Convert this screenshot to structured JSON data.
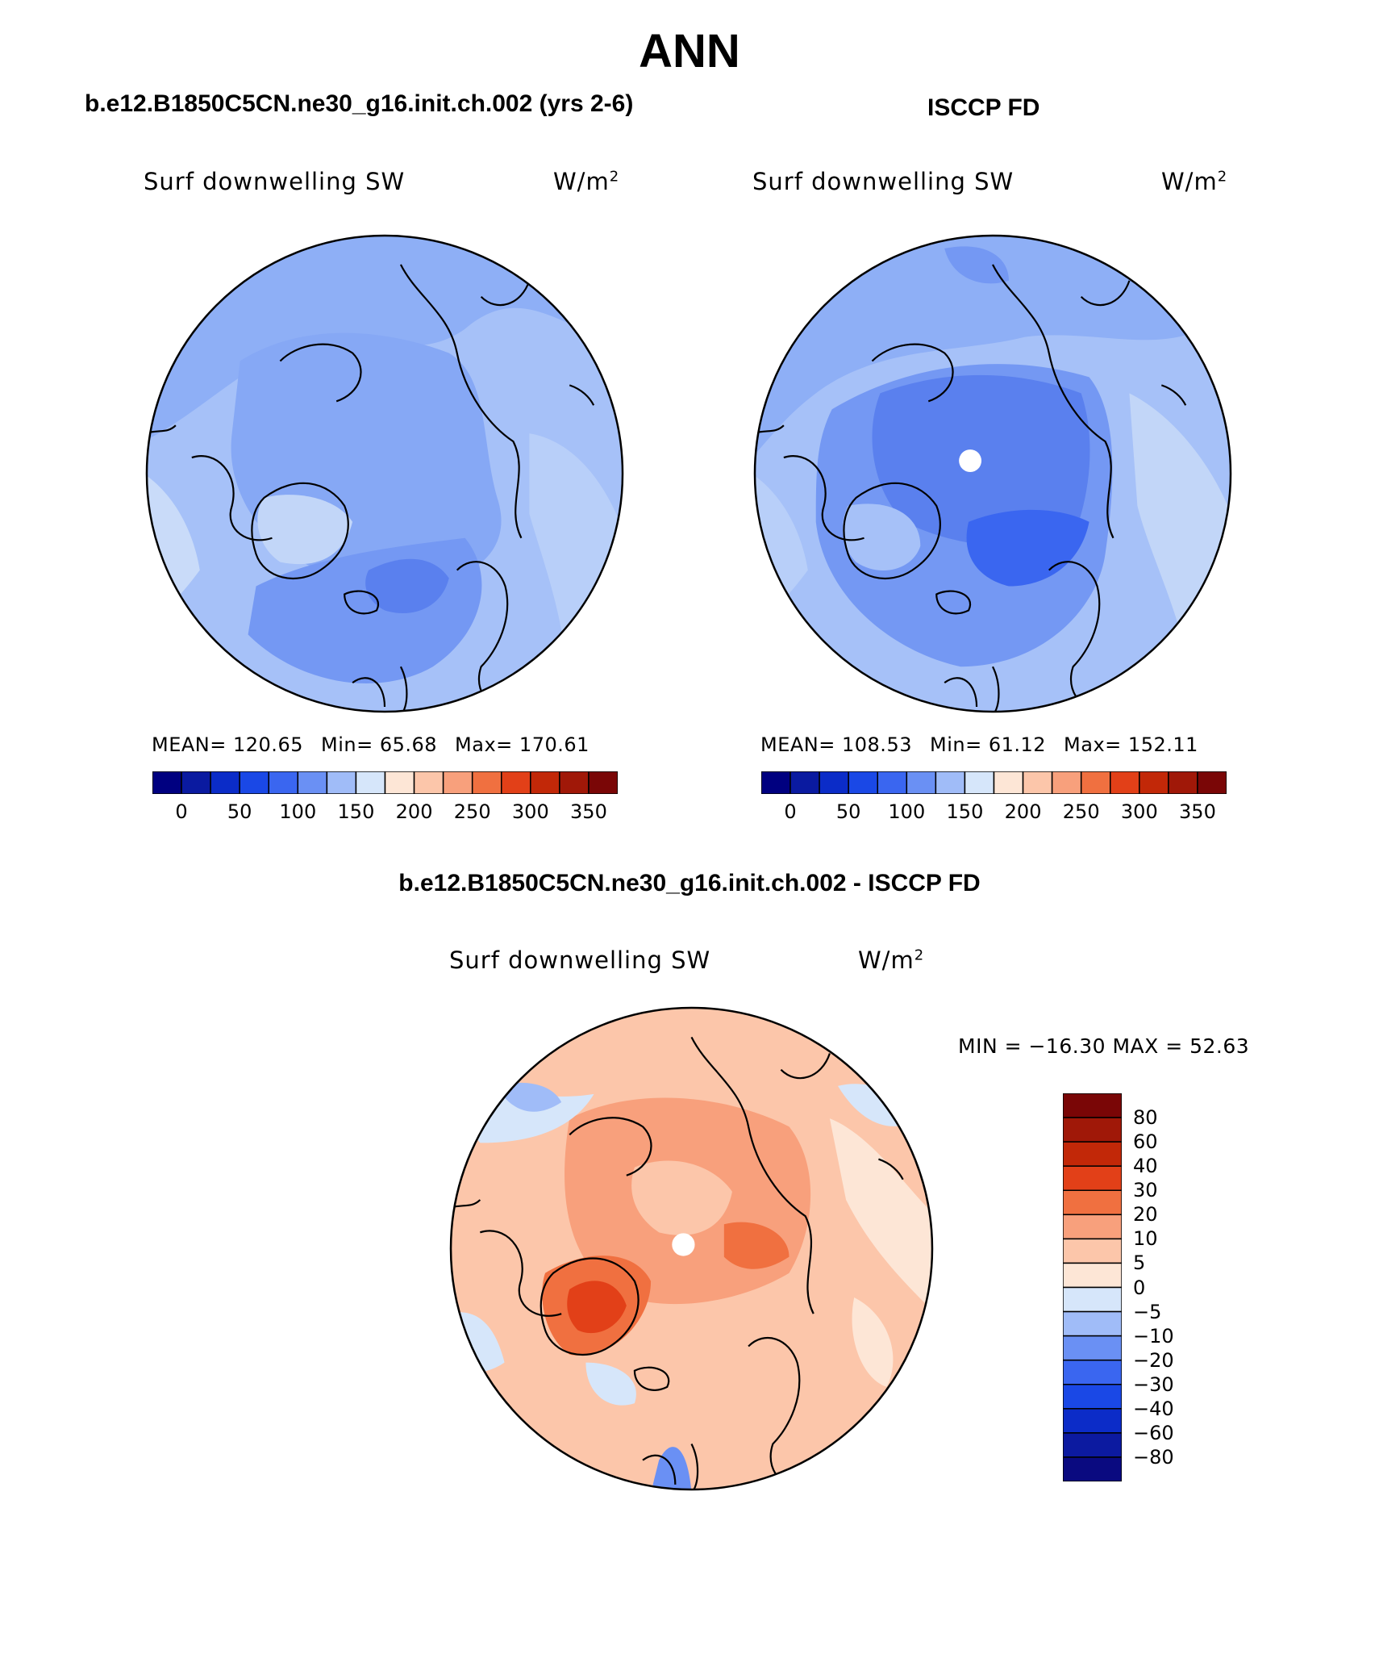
{
  "page": {
    "title": "ANN",
    "left_title": "b.e12.B1850C5CN.ne30_g16.init.ch.002 (yrs 2-6)",
    "right_title": "ISCCP FD",
    "diff_title": "b.e12.B1850C5CN.ne30_g16.init.ch.002 - ISCCP FD"
  },
  "maps": {
    "model": {
      "variable": "Surf downwelling SW",
      "units": "W/m",
      "units_sup": "2",
      "mean_label": "MEAN=",
      "mean": "120.65",
      "min_label": "Min=",
      "min": "65.68",
      "max_label": "Max=",
      "max": "170.61"
    },
    "obs": {
      "variable": "Surf downwelling SW",
      "units": "W/m",
      "units_sup": "2",
      "mean_label": "MEAN=",
      "mean": "108.53",
      "min_label": "Min=",
      "min": "61.12",
      "max_label": "Max=",
      "max": "152.11"
    },
    "diff": {
      "variable": "Surf downwelling SW",
      "units": "W/m",
      "units_sup": "2",
      "minmax_text": "MIN = −16.30 MAX =  52.63"
    }
  },
  "colorbar_abs": {
    "colors": [
      "#000080",
      "#0a1aa0",
      "#0b2cc8",
      "#1a48e6",
      "#3a66f0",
      "#6a90f4",
      "#a0bcf8",
      "#d6e6fa",
      "#fde6d6",
      "#fcc6aa",
      "#f8a07c",
      "#f07040",
      "#e24018",
      "#c22808",
      "#a01808",
      "#7a0606"
    ],
    "labels": [
      "0",
      "50",
      "100",
      "150",
      "200",
      "250",
      "300",
      "350"
    ]
  },
  "colorbar_diff": {
    "colors": [
      "#0a0a80",
      "#0c1aa0",
      "#0c2cc8",
      "#1a48e6",
      "#3a66f0",
      "#6a90f4",
      "#a0bcf8",
      "#d6e6fa",
      "#fde6d6",
      "#fcc6aa",
      "#f8a07c",
      "#f07040",
      "#e24018",
      "#c22808",
      "#a01808",
      "#7a0606"
    ],
    "labels": [
      "80",
      "60",
      "40",
      "30",
      "20",
      "10",
      "5",
      "0",
      "−5",
      "−10",
      "−20",
      "−30",
      "−40",
      "−60",
      "−80"
    ]
  },
  "chart_data": [
    {
      "type": "heatmap",
      "title": "Surf downwelling SW",
      "units": "W/m2",
      "projection": "north polar stereographic",
      "mean": 120.65,
      "min": 65.68,
      "max": 170.61,
      "levels": [
        0,
        25,
        50,
        75,
        100,
        125,
        150,
        175,
        200,
        225,
        250,
        275,
        300,
        325,
        350
      ]
    },
    {
      "type": "heatmap",
      "title": "Surf downwelling SW",
      "units": "W/m2",
      "projection": "north polar stereographic",
      "mean": 108.53,
      "min": 61.12,
      "max": 152.11,
      "levels": [
        0,
        25,
        50,
        75,
        100,
        125,
        150,
        175,
        200,
        225,
        250,
        275,
        300,
        325,
        350
      ]
    },
    {
      "type": "heatmap",
      "title": "Surf downwelling SW",
      "units": "W/m2",
      "projection": "north polar stereographic",
      "min": -16.3,
      "max": 52.63,
      "levels": [
        -80,
        -60,
        -40,
        -30,
        -20,
        -10,
        -5,
        0,
        5,
        10,
        20,
        30,
        40,
        60,
        80
      ]
    }
  ]
}
